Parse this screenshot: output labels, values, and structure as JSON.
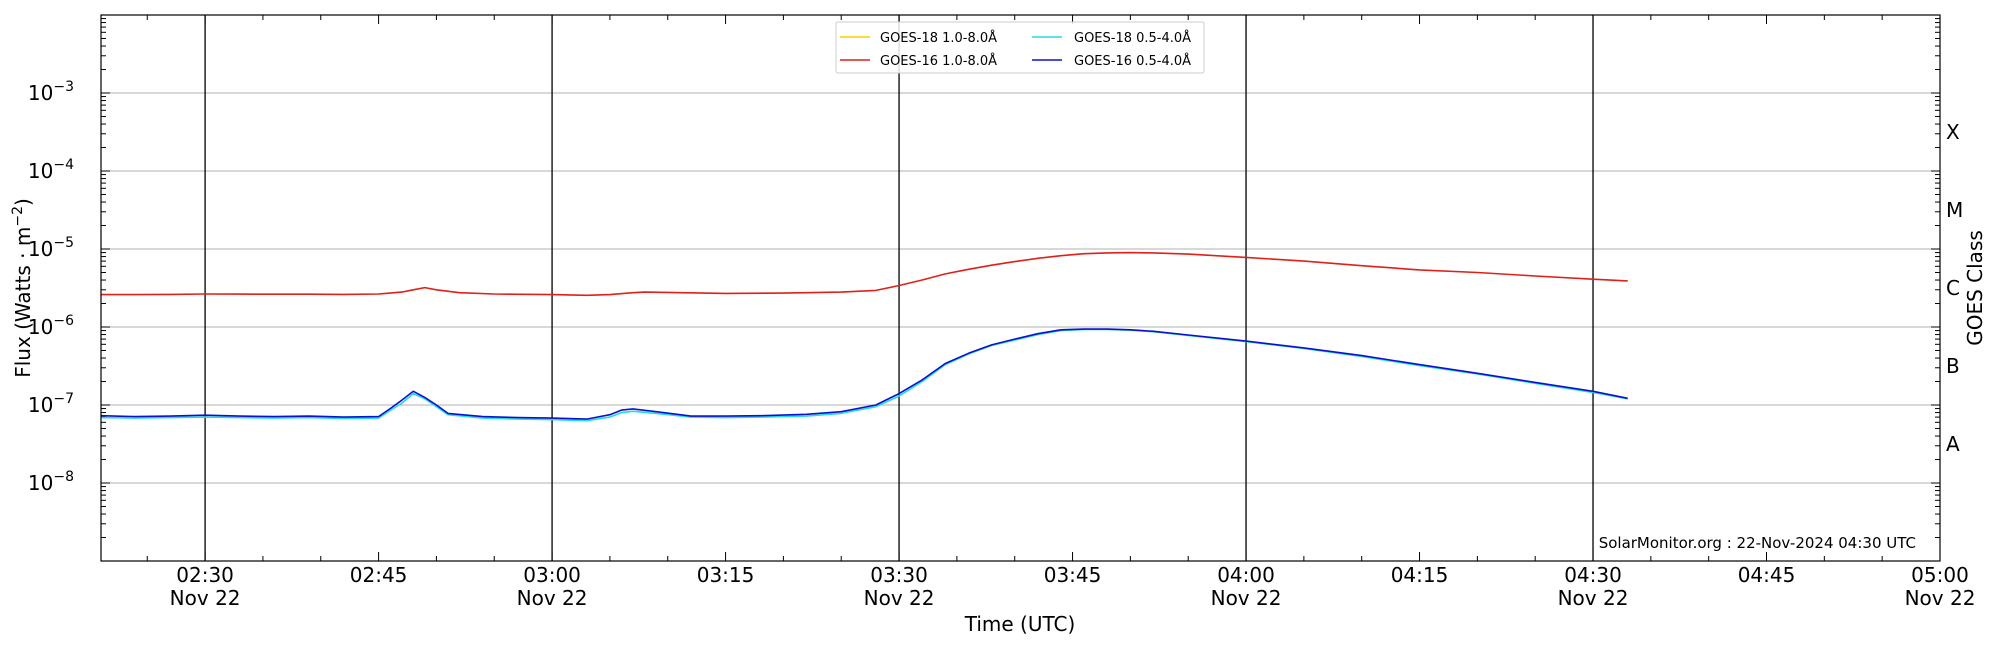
{
  "chart_data": {
    "type": "line",
    "xlabel": "Time (UTC)",
    "ylabel_main": "Flux (Watts · m",
    "ylabel_exp": "−2",
    "ylabel_close": ")",
    "right_label": "GOES Class",
    "credit": "SolarMonitor.org : 22-Nov-2024 04:30 UTC",
    "x_range_minutes": [
      -9,
      150
    ],
    "y_log_range": [
      -9,
      -2
    ],
    "y_ticks": [
      {
        "base": "10",
        "exp": "−8",
        "pow": -8
      },
      {
        "base": "10",
        "exp": "−7",
        "pow": -7
      },
      {
        "base": "10",
        "exp": "−6",
        "pow": -6
      },
      {
        "base": "10",
        "exp": "−5",
        "pow": -5
      },
      {
        "base": "10",
        "exp": "−4",
        "pow": -4
      },
      {
        "base": "10",
        "exp": "−3",
        "pow": -3
      }
    ],
    "x_ticks": [
      {
        "min": 0,
        "time": "02:30",
        "date": "Nov 22",
        "major": true
      },
      {
        "min": 15,
        "time": "02:45",
        "date": "",
        "major": false
      },
      {
        "min": 30,
        "time": "03:00",
        "date": "Nov 22",
        "major": true
      },
      {
        "min": 45,
        "time": "03:15",
        "date": "",
        "major": false
      },
      {
        "min": 60,
        "time": "03:30",
        "date": "Nov 22",
        "major": true
      },
      {
        "min": 75,
        "time": "03:45",
        "date": "",
        "major": false
      },
      {
        "min": 90,
        "time": "04:00",
        "date": "Nov 22",
        "major": true
      },
      {
        "min": 105,
        "time": "04:15",
        "date": "",
        "major": false
      },
      {
        "min": 120,
        "time": "04:30",
        "date": "Nov 22",
        "major": true
      },
      {
        "min": 135,
        "time": "04:45",
        "date": "",
        "major": false
      },
      {
        "min": 150,
        "time": "05:00",
        "date": "Nov 22",
        "major": true
      }
    ],
    "classes": [
      {
        "label": "A",
        "pow": -7.5
      },
      {
        "label": "B",
        "pow": -6.5
      },
      {
        "label": "C",
        "pow": -5.5
      },
      {
        "label": "M",
        "pow": -4.5
      },
      {
        "label": "X",
        "pow": -3.5
      }
    ],
    "legend": [
      {
        "name": "GOES-18 1.0-8.0Å",
        "color": "#f5d000"
      },
      {
        "name": "GOES-18 0.5-4.0Å",
        "color": "#22dddd"
      },
      {
        "name": "GOES-16 1.0-8.0Å",
        "color": "#e0201a"
      },
      {
        "name": "GOES-16 0.5-4.0Å",
        "color": "#1010cc"
      }
    ],
    "series": [
      {
        "name": "GOES-16 1.0-8.0Å",
        "color": "#e0201a",
        "points": [
          [
            -9,
            2.6e-06
          ],
          [
            -6,
            2.6e-06
          ],
          [
            -3,
            2.62e-06
          ],
          [
            0,
            2.65e-06
          ],
          [
            3,
            2.64e-06
          ],
          [
            6,
            2.63e-06
          ],
          [
            9,
            2.63e-06
          ],
          [
            12,
            2.62e-06
          ],
          [
            15,
            2.65e-06
          ],
          [
            17,
            2.8e-06
          ],
          [
            18,
            3e-06
          ],
          [
            19,
            3.2e-06
          ],
          [
            20,
            3e-06
          ],
          [
            22,
            2.75e-06
          ],
          [
            25,
            2.65e-06
          ],
          [
            30,
            2.6e-06
          ],
          [
            33,
            2.55e-06
          ],
          [
            35,
            2.6e-06
          ],
          [
            37,
            2.75e-06
          ],
          [
            38,
            2.8e-06
          ],
          [
            40,
            2.78e-06
          ],
          [
            45,
            2.7e-06
          ],
          [
            50,
            2.72e-06
          ],
          [
            55,
            2.8e-06
          ],
          [
            58,
            2.95e-06
          ],
          [
            60,
            3.4e-06
          ],
          [
            62,
            4e-06
          ],
          [
            64,
            4.8e-06
          ],
          [
            66,
            5.5e-06
          ],
          [
            68,
            6.2e-06
          ],
          [
            70,
            6.9e-06
          ],
          [
            72,
            7.6e-06
          ],
          [
            74,
            8.2e-06
          ],
          [
            76,
            8.7e-06
          ],
          [
            78,
            8.9e-06
          ],
          [
            80,
            9e-06
          ],
          [
            82,
            8.9e-06
          ],
          [
            85,
            8.6e-06
          ],
          [
            90,
            7.8e-06
          ],
          [
            95,
            7e-06
          ],
          [
            100,
            6.1e-06
          ],
          [
            105,
            5.4e-06
          ],
          [
            110,
            5e-06
          ],
          [
            115,
            4.5e-06
          ],
          [
            120,
            4.1e-06
          ],
          [
            123,
            3.9e-06
          ]
        ]
      },
      {
        "name": "GOES-18 0.5-4.0Å",
        "color": "#22dddd",
        "points": [
          [
            -9,
            6.9e-08
          ],
          [
            -6,
            6.8e-08
          ],
          [
            -3,
            6.9e-08
          ],
          [
            0,
            7e-08
          ],
          [
            3,
            6.9e-08
          ],
          [
            6,
            6.8e-08
          ],
          [
            9,
            6.9e-08
          ],
          [
            12,
            6.7e-08
          ],
          [
            15,
            6.8e-08
          ],
          [
            16,
            8.5e-08
          ],
          [
            17,
            1.05e-07
          ],
          [
            18,
            1.4e-07
          ],
          [
            19,
            1.2e-07
          ],
          [
            20,
            9.5e-08
          ],
          [
            21,
            7.5e-08
          ],
          [
            24,
            6.8e-08
          ],
          [
            27,
            6.6e-08
          ],
          [
            30,
            6.5e-08
          ],
          [
            33,
            6.3e-08
          ],
          [
            35,
            7e-08
          ],
          [
            36,
            8e-08
          ],
          [
            37,
            8.3e-08
          ],
          [
            39,
            7.8e-08
          ],
          [
            42,
            7e-08
          ],
          [
            45,
            6.9e-08
          ],
          [
            48,
            7e-08
          ],
          [
            52,
            7.2e-08
          ],
          [
            55,
            7.8e-08
          ],
          [
            58,
            9.5e-08
          ],
          [
            60,
            1.3e-07
          ],
          [
            62,
            2e-07
          ],
          [
            64,
            3.3e-07
          ],
          [
            66,
            4.5e-07
          ],
          [
            68,
            5.8e-07
          ],
          [
            70,
            6.8e-07
          ],
          [
            72,
            8e-07
          ],
          [
            74,
            9e-07
          ],
          [
            76,
            9.3e-07
          ],
          [
            78,
            9.3e-07
          ],
          [
            80,
            9.1e-07
          ],
          [
            82,
            8.7e-07
          ],
          [
            85,
            7.8e-07
          ],
          [
            90,
            6.5e-07
          ],
          [
            95,
            5.3e-07
          ],
          [
            100,
            4.2e-07
          ],
          [
            105,
            3.2e-07
          ],
          [
            110,
            2.5e-07
          ],
          [
            115,
            1.9e-07
          ],
          [
            120,
            1.45e-07
          ],
          [
            123,
            1.2e-07
          ]
        ]
      },
      {
        "name": "GOES-16 0.5-4.0Å",
        "color": "#1010cc",
        "points": [
          [
            -9,
            7.3e-08
          ],
          [
            -6,
            7.1e-08
          ],
          [
            -3,
            7.2e-08
          ],
          [
            0,
            7.4e-08
          ],
          [
            3,
            7.2e-08
          ],
          [
            6,
            7.1e-08
          ],
          [
            9,
            7.2e-08
          ],
          [
            12,
            7e-08
          ],
          [
            15,
            7.1e-08
          ],
          [
            16,
            9e-08
          ],
          [
            17,
            1.15e-07
          ],
          [
            18,
            1.5e-07
          ],
          [
            19,
            1.25e-07
          ],
          [
            20,
            1e-07
          ],
          [
            21,
            7.8e-08
          ],
          [
            24,
            7.1e-08
          ],
          [
            27,
            6.9e-08
          ],
          [
            30,
            6.8e-08
          ],
          [
            33,
            6.6e-08
          ],
          [
            35,
            7.5e-08
          ],
          [
            36,
            8.6e-08
          ],
          [
            37,
            8.9e-08
          ],
          [
            39,
            8.2e-08
          ],
          [
            42,
            7.2e-08
          ],
          [
            45,
            7.2e-08
          ],
          [
            48,
            7.3e-08
          ],
          [
            52,
            7.6e-08
          ],
          [
            55,
            8.2e-08
          ],
          [
            58,
            1e-07
          ],
          [
            60,
            1.4e-07
          ],
          [
            62,
            2.1e-07
          ],
          [
            64,
            3.4e-07
          ],
          [
            66,
            4.6e-07
          ],
          [
            68,
            5.9e-07
          ],
          [
            70,
            7e-07
          ],
          [
            72,
            8.2e-07
          ],
          [
            74,
            9.2e-07
          ],
          [
            76,
            9.4e-07
          ],
          [
            78,
            9.4e-07
          ],
          [
            80,
            9.2e-07
          ],
          [
            82,
            8.8e-07
          ],
          [
            85,
            7.9e-07
          ],
          [
            90,
            6.6e-07
          ],
          [
            95,
            5.4e-07
          ],
          [
            100,
            4.3e-07
          ],
          [
            105,
            3.3e-07
          ],
          [
            110,
            2.55e-07
          ],
          [
            115,
            1.95e-07
          ],
          [
            120,
            1.5e-07
          ],
          [
            123,
            1.22e-07
          ]
        ]
      }
    ]
  }
}
